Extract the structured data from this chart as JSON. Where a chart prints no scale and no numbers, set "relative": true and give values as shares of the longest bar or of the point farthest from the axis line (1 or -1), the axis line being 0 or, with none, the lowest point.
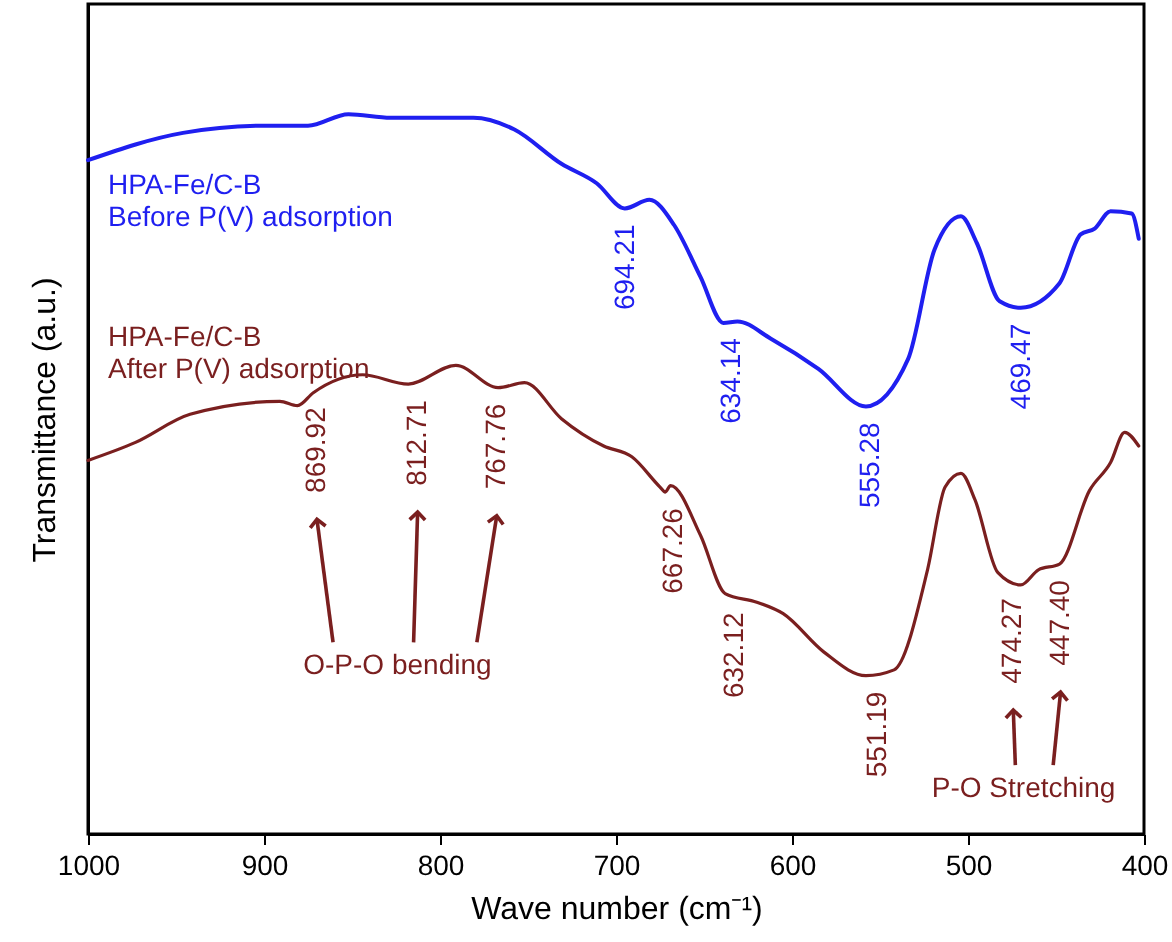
{
  "chart_data": {
    "type": "line",
    "relative": true,
    "xlabel": "Wave number   (cm⁻¹)",
    "ylabel": "Transmittance   (a.u.)",
    "xlim": [
      1000,
      400
    ],
    "xticks": [
      1000,
      900,
      800,
      700,
      600,
      500,
      400
    ],
    "series": [
      {
        "name": "HPA-Fe/C-B\nBefore P(V) adsorption",
        "color": "#1f1ff0",
        "x": [
          1000,
          946,
          899,
          875,
          852,
          828,
          781,
          758,
          731,
          711,
          695,
          681,
          667,
          652,
          639,
          631,
          612,
          585,
          558,
          534,
          519,
          504,
          495,
          482,
          470,
          448,
          436,
          428,
          419,
          407,
          403
        ],
        "values": [
          0.936,
          0.974,
          0.984,
          0.984,
          1.0,
          0.995,
          0.995,
          0.979,
          0.931,
          0.904,
          0.869,
          0.881,
          0.846,
          0.774,
          0.71,
          0.712,
          0.688,
          0.646,
          0.594,
          0.66,
          0.812,
          0.858,
          0.821,
          0.74,
          0.731,
          0.765,
          0.833,
          0.841,
          0.865,
          0.862,
          0.827
        ]
      },
      {
        "name": "HPA-Fe/C-B\nAfter P(V) adsorption",
        "color": "#7a1f1f",
        "x": [
          1000,
          973,
          942,
          891,
          881,
          872,
          844,
          818,
          791,
          767,
          752,
          731,
          707,
          691,
          675,
          672,
          669,
          652,
          638,
          620,
          605,
          582,
          558,
          542,
          523,
          513,
          504,
          496,
          483,
          470,
          460,
          448,
          431,
          419,
          411,
          403
        ],
        "values": [
          0.519,
          0.544,
          0.583,
          0.601,
          0.595,
          0.613,
          0.638,
          0.625,
          0.651,
          0.62,
          0.627,
          0.577,
          0.539,
          0.524,
          0.482,
          0.475,
          0.484,
          0.415,
          0.334,
          0.322,
          0.306,
          0.253,
          0.22,
          0.228,
          0.367,
          0.482,
          0.501,
          0.464,
          0.363,
          0.346,
          0.367,
          0.375,
          0.477,
          0.516,
          0.558,
          0.539
        ]
      }
    ],
    "annotations": [
      {
        "text": "694.21",
        "x": 694.21,
        "y": 0.869
      },
      {
        "text": "634.14",
        "x": 634.14,
        "y": 0.711
      },
      {
        "text": "555.28",
        "x": 555.28,
        "y": 0.594
      },
      {
        "text": "469.47",
        "x": 469.47,
        "y": 0.731
      },
      {
        "text": "869.92",
        "x": 869.92,
        "y": 0.615
      },
      {
        "text": "812.71",
        "x": 812.71,
        "y": 0.625
      },
      {
        "text": "767.76",
        "x": 767.76,
        "y": 0.62
      },
      {
        "text": "667.26",
        "x": 667.26,
        "y": 0.475
      },
      {
        "text": "632.12",
        "x": 632.12,
        "y": 0.33
      },
      {
        "text": "551.19",
        "x": 551.19,
        "y": 0.22
      },
      {
        "text": "474.27",
        "x": 474.27,
        "y": 0.35
      },
      {
        "text": "447.40",
        "x": 447.4,
        "y": 0.375
      },
      "O-P-O bending",
      "P-O Stretching"
    ]
  }
}
